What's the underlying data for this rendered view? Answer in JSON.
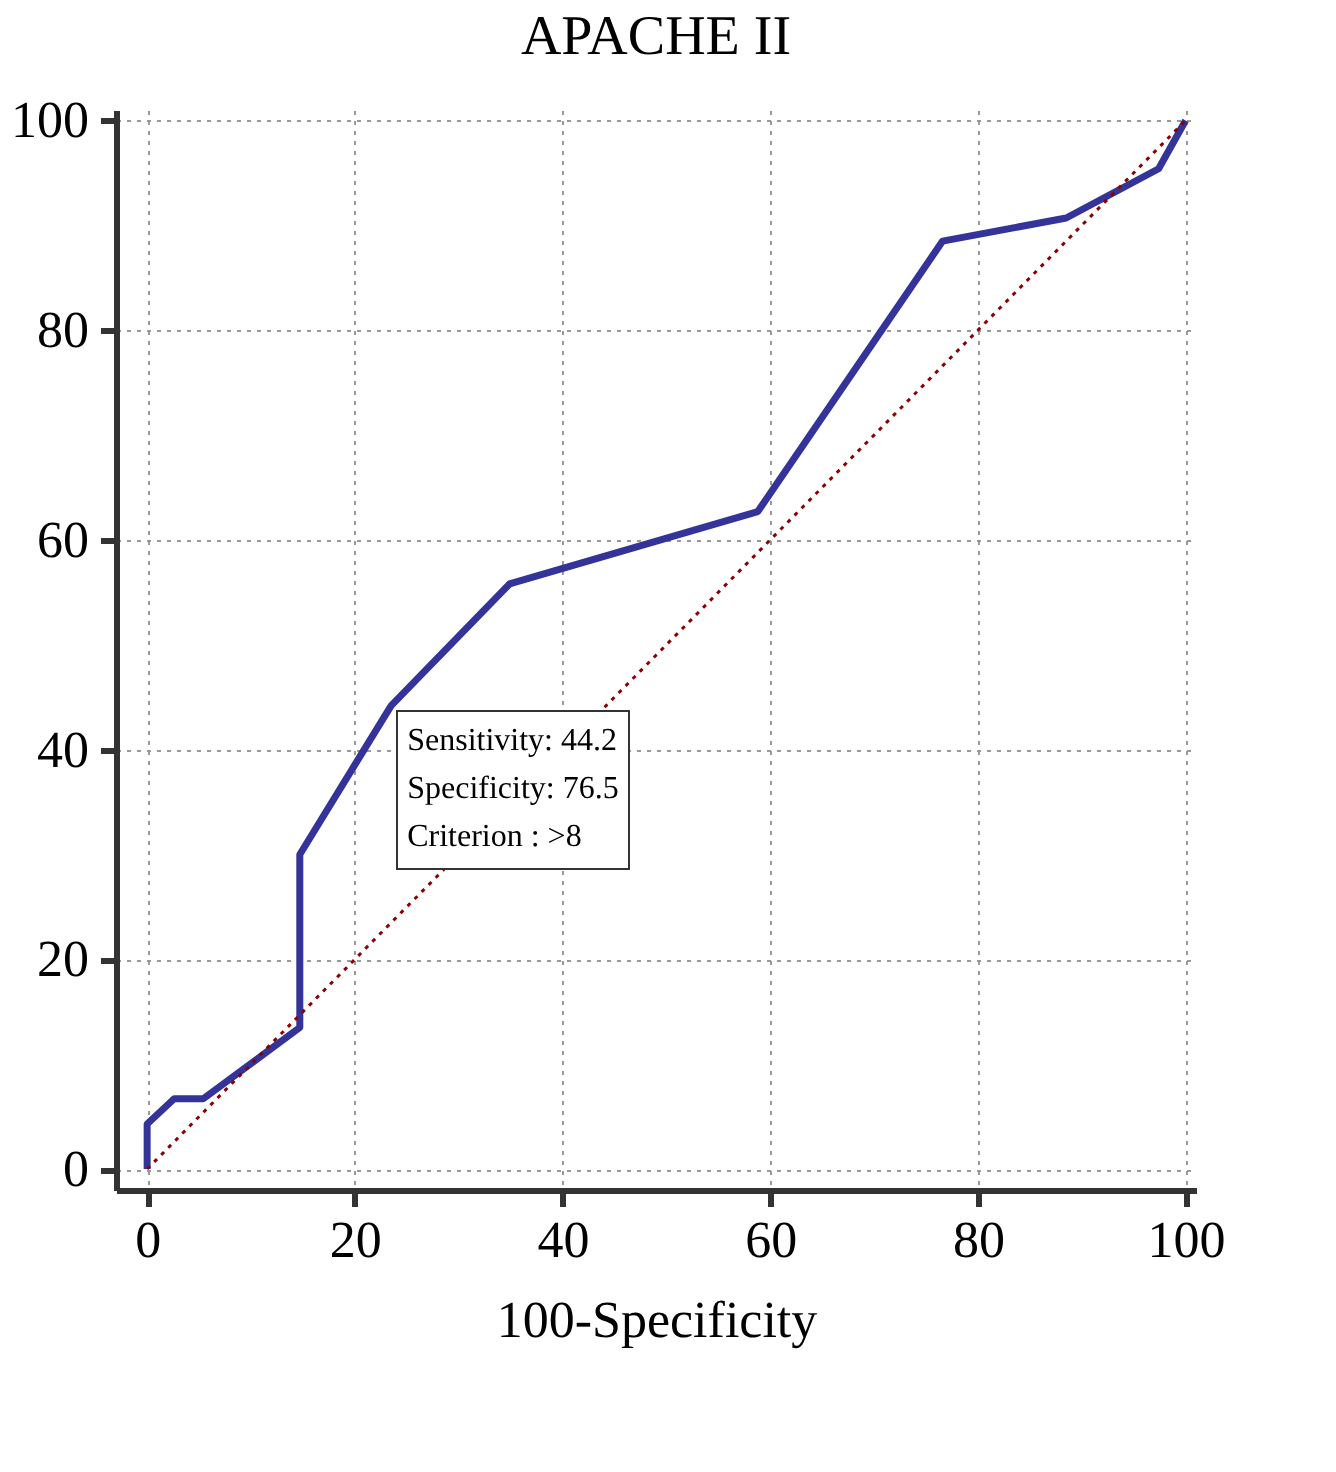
{
  "chart_data": {
    "type": "line",
    "title": "APACHE II",
    "xlabel": "100-Specificity",
    "series": [
      {
        "color": "#333399",
        "line_style": "solid",
        "x": [
          0,
          0,
          2.6,
          5.4,
          14.7,
          14.7,
          23.5,
          34.9,
          58.8,
          76.6,
          88.5,
          97.4,
          100
        ],
        "values": [
          0,
          4.3,
          6.7,
          6.7,
          13.5,
          30.0,
          44.2,
          55.8,
          62.7,
          88.5,
          90.7,
          95.4,
          100
        ]
      },
      {
        "color": "#8b0000",
        "line_style": "dotted",
        "x": [
          0,
          100
        ],
        "values": [
          0,
          100
        ]
      }
    ],
    "xlim": [
      -3,
      101
    ],
    "ylim": [
      -2,
      101
    ],
    "xticks": [
      0,
      20,
      40,
      60,
      80,
      100
    ],
    "yticks": [
      0,
      20,
      40,
      60,
      80,
      100
    ],
    "grid": true,
    "annotations": [
      {
        "text": "Sensitivity: 44.2\nSpecificity: 76.5\nCriterion : >8",
        "x": 23.5,
        "y": 44.2
      }
    ]
  }
}
